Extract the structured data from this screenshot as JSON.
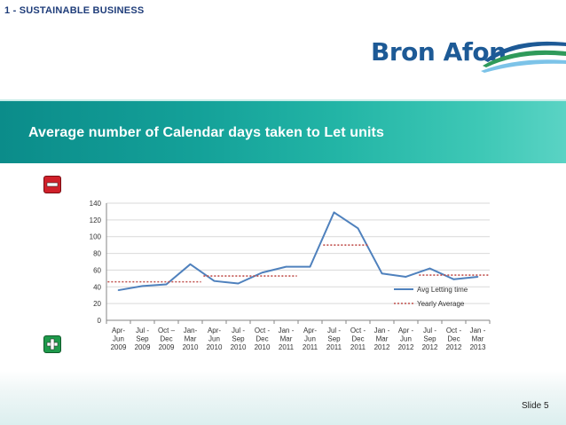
{
  "section_label": "1 - SUSTAINABLE BUSINESS",
  "logo_text": "Bron Afon",
  "banner_title": "Average number of Calendar days taken to Let units",
  "slide_label": "Slide 5",
  "colors": {
    "line_series": "#4f81bd",
    "avg_series": "#c0504d",
    "banner": "#14a199"
  },
  "chart_data": {
    "type": "line",
    "title": "",
    "xlabel": "",
    "ylabel": "",
    "ylim": [
      0,
      140
    ],
    "yticks": [
      0,
      20,
      40,
      60,
      80,
      100,
      120,
      140
    ],
    "categories": [
      [
        "Apr-",
        "Jun",
        "2009"
      ],
      [
        "Jul -",
        "Sep",
        "2009"
      ],
      [
        "Oct –",
        "Dec",
        "2009"
      ],
      [
        "Jan-",
        "Mar",
        "2010"
      ],
      [
        "Apr-",
        "Jun",
        "2010"
      ],
      [
        "Jul -",
        "Sep",
        "2010"
      ],
      [
        "Oct -",
        "Dec",
        "2010"
      ],
      [
        "Jan -",
        "Mar",
        "2011"
      ],
      [
        "Apr-",
        "Jun",
        "2011"
      ],
      [
        "Jul -",
        "Sep",
        "2011"
      ],
      [
        "Oct -",
        "Dec",
        "2011"
      ],
      [
        "Jan -",
        "Mar",
        "2012"
      ],
      [
        "Apr -",
        "Jun",
        "2012"
      ],
      [
        "Jul -",
        "Sep",
        "2012"
      ],
      [
        "Oct -",
        "Dec",
        "2012"
      ],
      [
        "Jan -",
        "Mar",
        "2013"
      ]
    ],
    "series": [
      {
        "name": "Avg Letting time",
        "style": "solid",
        "values": [
          36,
          41,
          43,
          67,
          47,
          44,
          57,
          64,
          64,
          129,
          110,
          56,
          52,
          62,
          49,
          52
        ]
      },
      {
        "name": "Yearly Average",
        "style": "dotted",
        "values": [
          46,
          46,
          46,
          46,
          53,
          53,
          53,
          53,
          null,
          90,
          90,
          null,
          null,
          54,
          54,
          54
        ]
      }
    ],
    "legend_position": "right"
  }
}
